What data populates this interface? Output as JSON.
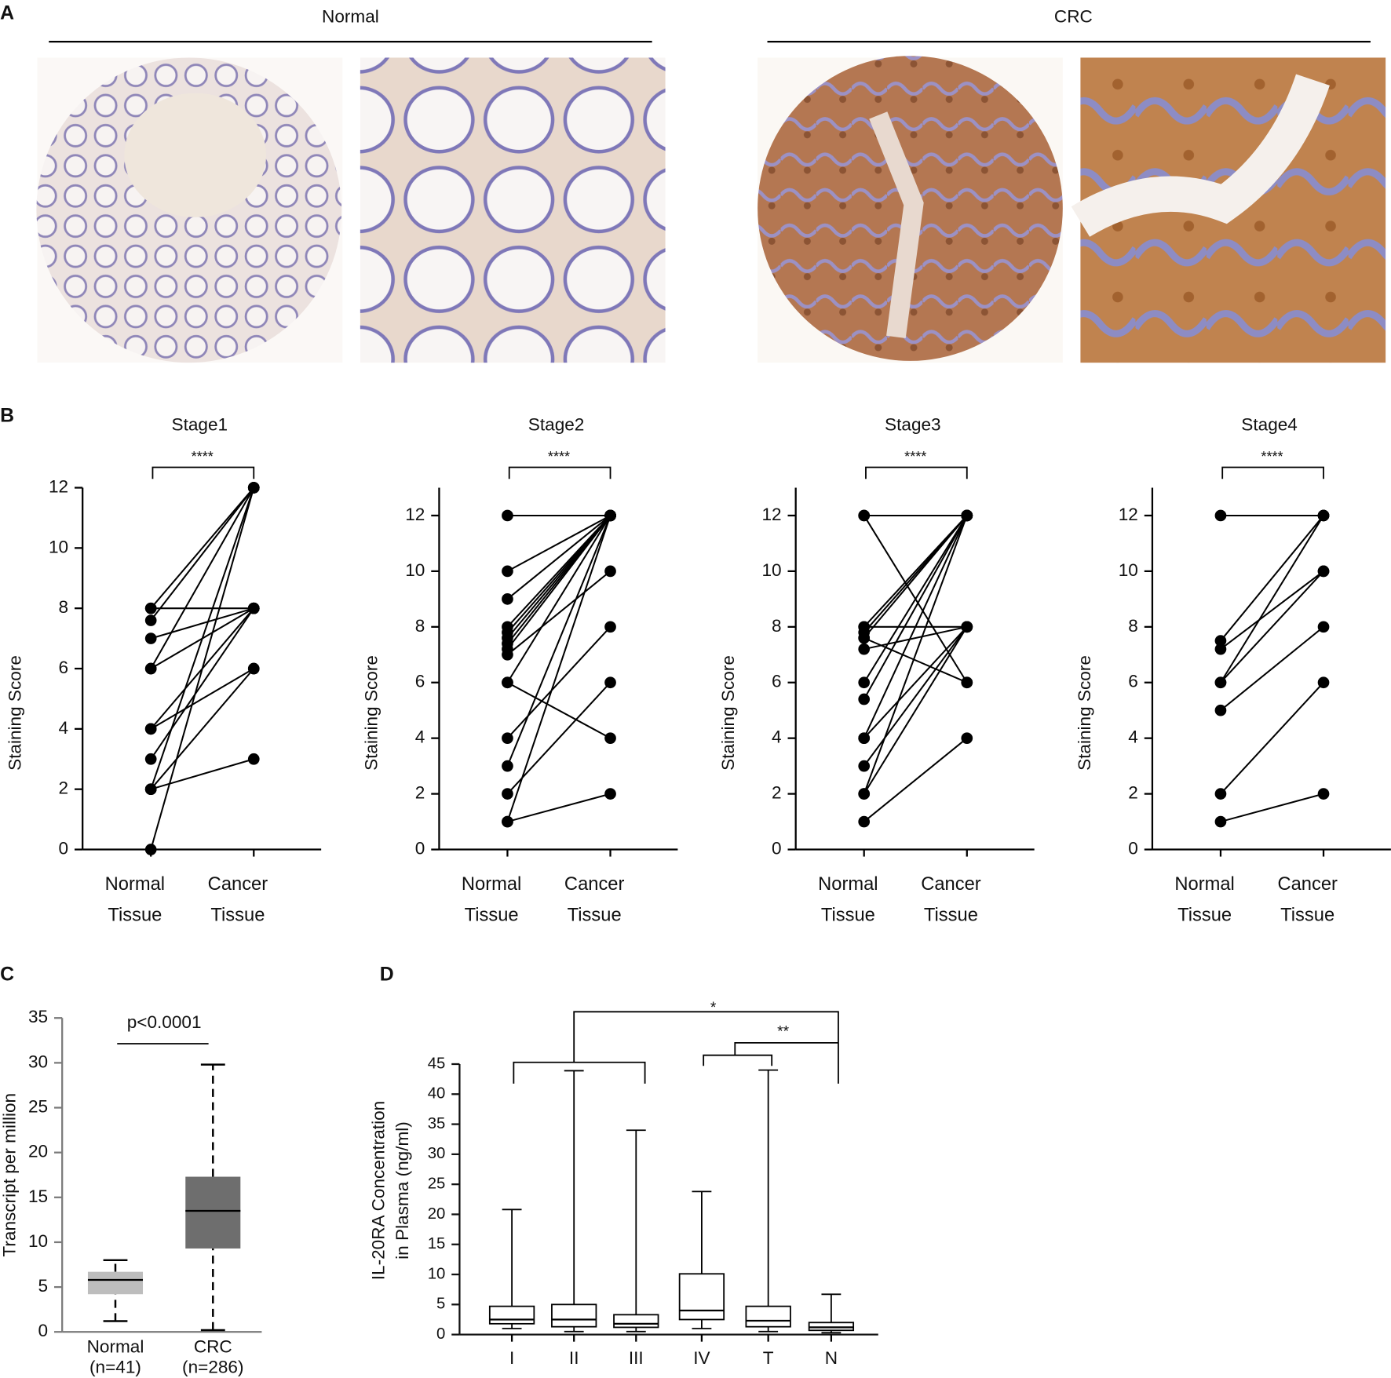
{
  "figure": {
    "panel_a": {
      "label": "A",
      "groups": [
        {
          "title": "Normal"
        },
        {
          "title": "CRC"
        }
      ]
    }
  },
  "chart_data": [
    {
      "type": "paired",
      "panel_label": "B",
      "title": "Stage1",
      "annotation": "****",
      "ylabel": "Staining Score",
      "categories": [
        [
          "Normal",
          "Tissue"
        ],
        [
          "Cancer",
          "Tissue"
        ]
      ],
      "pairs": [
        [
          8,
          8
        ],
        [
          8,
          12
        ],
        [
          7.6,
          12
        ],
        [
          7,
          8
        ],
        [
          6,
          12
        ],
        [
          6,
          8
        ],
        [
          4,
          8
        ],
        [
          4,
          6
        ],
        [
          3,
          8
        ],
        [
          2,
          6
        ],
        [
          2,
          3
        ],
        [
          2,
          12
        ],
        [
          0,
          12
        ]
      ],
      "ylim": [
        0,
        12
      ],
      "yticks": [
        0,
        2,
        4,
        6,
        8,
        10,
        12
      ],
      "color": "#000000"
    },
    {
      "type": "paired",
      "title": "Stage2",
      "annotation": "****",
      "ylabel": "Staining Score",
      "categories": [
        [
          "Normal",
          "Tissue"
        ],
        [
          "Cancer",
          "Tissue"
        ]
      ],
      "pairs": [
        [
          12,
          12
        ],
        [
          10,
          12
        ],
        [
          9,
          12
        ],
        [
          8,
          12
        ],
        [
          7.8,
          12
        ],
        [
          7.6,
          12
        ],
        [
          7.4,
          12
        ],
        [
          7.2,
          12
        ],
        [
          7,
          10
        ],
        [
          6,
          12
        ],
        [
          6,
          4
        ],
        [
          4,
          8
        ],
        [
          3,
          12
        ],
        [
          2,
          6
        ],
        [
          1,
          12
        ],
        [
          1,
          2
        ]
      ],
      "ylim": [
        0,
        13
      ],
      "yticks": [
        0,
        2,
        4,
        6,
        8,
        10,
        12
      ],
      "color": "#000000"
    },
    {
      "type": "paired",
      "title": "Stage3",
      "annotation": "****",
      "ylabel": "Staining Score",
      "categories": [
        [
          "Normal",
          "Tissue"
        ],
        [
          "Cancer",
          "Tissue"
        ]
      ],
      "pairs": [
        [
          12,
          12
        ],
        [
          12,
          6
        ],
        [
          8,
          12
        ],
        [
          8,
          8
        ],
        [
          7.8,
          12
        ],
        [
          7.6,
          12
        ],
        [
          7.6,
          6
        ],
        [
          7.2,
          8
        ],
        [
          6,
          12
        ],
        [
          5.4,
          12
        ],
        [
          4,
          12
        ],
        [
          4,
          8
        ],
        [
          3,
          8
        ],
        [
          2,
          12
        ],
        [
          2,
          8
        ],
        [
          1,
          4
        ]
      ],
      "ylim": [
        0,
        13
      ],
      "yticks": [
        0,
        2,
        4,
        6,
        8,
        10,
        12
      ],
      "color": "#000000"
    },
    {
      "type": "paired",
      "title": "Stage4",
      "annotation": "****",
      "ylabel": "Staining Score",
      "categories": [
        [
          "Normal",
          "Tissue"
        ],
        [
          "Cancer",
          "Tissue"
        ]
      ],
      "pairs": [
        [
          12,
          12
        ],
        [
          7.5,
          12
        ],
        [
          7.2,
          10
        ],
        [
          6,
          10
        ],
        [
          6,
          12
        ],
        [
          5,
          8
        ],
        [
          2,
          6
        ],
        [
          1,
          2
        ]
      ],
      "ylim": [
        0,
        13
      ],
      "yticks": [
        0,
        2,
        4,
        6,
        8,
        10,
        12
      ],
      "color": "#000000"
    },
    {
      "type": "box",
      "panel_label": "C",
      "ylabel": "Transcript per million",
      "annotation": "p<0.0001",
      "categories": [
        [
          "Normal",
          "(n=41)"
        ],
        [
          "CRC",
          "(n=286)"
        ]
      ],
      "boxes": [
        {
          "min": 1.2,
          "q1": 4.2,
          "median": 5.8,
          "q3": 6.7,
          "max": 8
        },
        {
          "min": 0.2,
          "q1": 9.3,
          "median": 13.5,
          "q3": 17.3,
          "max": 29.8
        }
      ],
      "colors": [
        "#bdbdbd",
        "#6e6e6e"
      ],
      "label_color": "#7a7a7a",
      "whisker_dash": true,
      "ylim": [
        0,
        35
      ],
      "yticks": [
        0,
        5,
        10,
        15,
        20,
        25,
        30,
        35
      ]
    },
    {
      "type": "box",
      "panel_label": "D",
      "ylabel": [
        "IL-20RA Concentration",
        "in Plasma (ng/ml)"
      ],
      "annotations": [
        "*",
        "**"
      ],
      "categories": [
        "I",
        "II",
        "III",
        "IV",
        "T",
        "N"
      ],
      "boxes": [
        {
          "min": 1,
          "q1": 1.8,
          "median": 2.5,
          "q3": 4.7,
          "max": 20.8
        },
        {
          "min": 0.5,
          "q1": 1.3,
          "median": 2.5,
          "q3": 5,
          "max": 43.9
        },
        {
          "min": 0.5,
          "q1": 1.2,
          "median": 1.8,
          "q3": 3.3,
          "max": 34
        },
        {
          "min": 1,
          "q1": 2.5,
          "median": 4,
          "q3": 10.1,
          "max": 23.8
        },
        {
          "min": 0.5,
          "q1": 1.3,
          "median": 2.3,
          "q3": 4.7,
          "max": 44
        },
        {
          "min": 0.3,
          "q1": 0.7,
          "median": 1.2,
          "q3": 2,
          "max": 6.7
        }
      ],
      "colors": [
        "#ffffff",
        "#ffffff",
        "#ffffff",
        "#ffffff",
        "#ffffff",
        "#ffffff"
      ],
      "label_color": "#111111",
      "whisker_dash": false,
      "ylim": [
        0,
        45
      ],
      "yticks": [
        0,
        5,
        10,
        15,
        20,
        25,
        30,
        35,
        40,
        45
      ]
    }
  ]
}
